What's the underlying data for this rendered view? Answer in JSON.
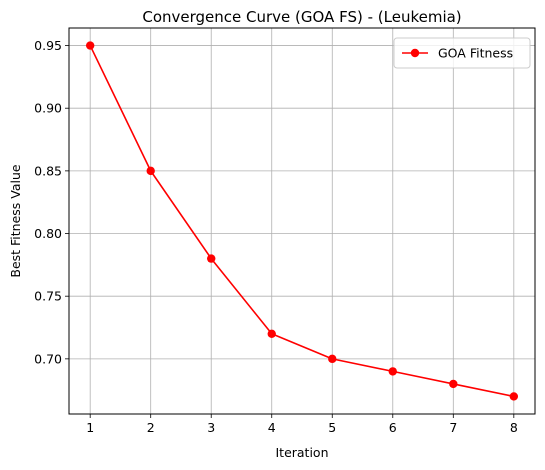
{
  "chart_data": {
    "type": "line",
    "title": "Convergence Curve (GOA FS) - (Leukemia)",
    "xlabel": "Iteration",
    "ylabel": "Best Fitness Value",
    "x": [
      1,
      2,
      3,
      4,
      5,
      6,
      7,
      8
    ],
    "series": [
      {
        "name": "GOA Fitness",
        "values": [
          0.95,
          0.85,
          0.78,
          0.72,
          0.7,
          0.69,
          0.68,
          0.67
        ],
        "color": "#ff0000",
        "marker": "circle"
      }
    ],
    "xticks": [
      "1",
      "2",
      "3",
      "4",
      "5",
      "6",
      "7",
      "8"
    ],
    "yticks": [
      "0.70",
      "0.75",
      "0.80",
      "0.85",
      "0.90",
      "0.95"
    ],
    "xlim": [
      0.65,
      8.35
    ],
    "ylim": [
      0.656,
      0.964
    ],
    "grid": true,
    "legend_position": "top-right"
  }
}
